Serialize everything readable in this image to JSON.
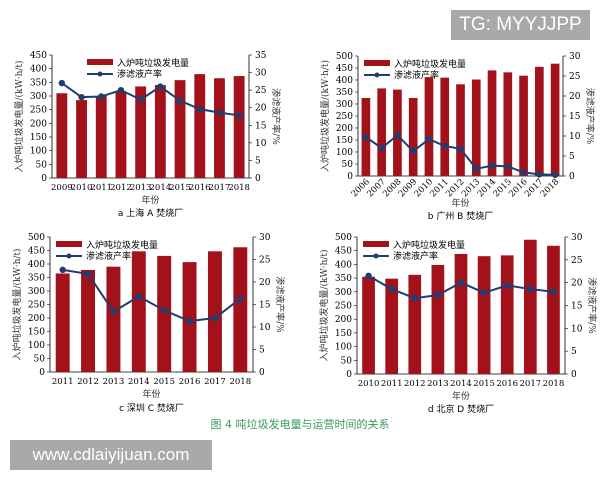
{
  "watermark_top": "TG: MYYJJPP",
  "watermark_bottom": "www.cdlaiyijuan.com",
  "figure_caption": "图 4    吨垃圾发电量与运营时间的关系",
  "colors": {
    "bar": "#a3121b",
    "line": "#1f3d70"
  },
  "chart_data": [
    {
      "type": "bar+line",
      "title": "a  上海 A 焚烧厂",
      "xlabel": "年份",
      "ylabel": "入炉吨垃圾发电量/(kW·h/t)",
      "y2label": "渗滤液产率/%",
      "legend": [
        "入炉吨垃圾发电量",
        "渗滤液产率"
      ],
      "legend_position": "top-center",
      "categories": [
        "2009",
        "2010",
        "2011",
        "2012",
        "2013",
        "2014",
        "2015",
        "2016",
        "2017",
        "2018"
      ],
      "series": [
        {
          "name": "入炉吨垃圾发电量",
          "axis": "left",
          "values": [
            310,
            285,
            300,
            315,
            335,
            340,
            358,
            380,
            365,
            373
          ]
        },
        {
          "name": "渗滤液产率",
          "axis": "right",
          "values": [
            27,
            23,
            23.2,
            25,
            22.3,
            26,
            22,
            19.6,
            18.6,
            17.8
          ]
        }
      ],
      "ylim": [
        0,
        450
      ],
      "yticks": [
        0,
        50,
        100,
        150,
        200,
        250,
        300,
        350,
        400,
        450
      ],
      "y2lim": [
        0,
        35
      ],
      "y2ticks": [
        0,
        5,
        10,
        15,
        20,
        25,
        30,
        35
      ],
      "rotate_x": false
    },
    {
      "type": "bar+line",
      "title": "b  广州 B 焚烧厂",
      "xlabel": "年份",
      "ylabel": "入炉吨垃圾发电量/(kW·h/t)",
      "y2label": "渗滤液产率/%",
      "legend": [
        "入炉吨垃圾发电量",
        "渗滤液产率"
      ],
      "legend_position": "top-left",
      "categories": [
        "2006",
        "2007",
        "2008",
        "2009",
        "2010",
        "2011",
        "2012",
        "2013",
        "2014",
        "2015",
        "2016",
        "2017",
        "2018"
      ],
      "series": [
        {
          "name": "入炉吨垃圾发电量",
          "axis": "left",
          "values": [
            325,
            365,
            360,
            325,
            412,
            410,
            382,
            402,
            440,
            432,
            418,
            455,
            468
          ]
        },
        {
          "name": "渗滤液产率",
          "axis": "right",
          "values": [
            9.7,
            7,
            10.2,
            6.2,
            9.2,
            7.5,
            6.8,
            1.8,
            2.6,
            2.4,
            0.9,
            0.4,
            0.3
          ]
        }
      ],
      "ylim": [
        0,
        500
      ],
      "yticks": [
        0,
        50,
        100,
        150,
        200,
        250,
        300,
        350,
        400,
        450,
        500
      ],
      "y2lim": [
        0,
        30
      ],
      "y2ticks": [
        0,
        5,
        10,
        15,
        20,
        25,
        30
      ],
      "rotate_x": true
    },
    {
      "type": "bar+line",
      "title": "c  深圳 C 焚烧厂",
      "xlabel": "年份",
      "ylabel": "入炉吨垃圾发电量/(kW·h/t)",
      "y2label": "渗滤液产率/%",
      "legend": [
        "入炉吨垃圾发电量",
        "渗滤液产率"
      ],
      "legend_position": "top-left",
      "categories": [
        "2011",
        "2012",
        "2013",
        "2014",
        "2015",
        "2016",
        "2017",
        "2018"
      ],
      "series": [
        {
          "name": "入炉吨垃圾发电量",
          "axis": "left",
          "values": [
            365,
            378,
            390,
            447,
            430,
            407,
            447,
            462
          ]
        },
        {
          "name": "渗滤液产率",
          "axis": "right",
          "values": [
            22.7,
            21.8,
            13.4,
            16.8,
            13.7,
            11.3,
            12,
            16.3
          ]
        }
      ],
      "ylim": [
        0,
        500
      ],
      "yticks": [
        0,
        50,
        100,
        150,
        200,
        250,
        300,
        350,
        400,
        450,
        500
      ],
      "y2lim": [
        0,
        30
      ],
      "y2ticks": [
        0,
        5,
        10,
        15,
        20,
        25,
        30
      ],
      "rotate_x": false
    },
    {
      "type": "bar+line",
      "title": "d  北京 D 焚烧厂",
      "xlabel": "年份",
      "ylabel": "入炉吨垃圾发电量/(kW·h/t)",
      "y2label": "渗滤液产率/%",
      "legend": [
        "入炉吨垃圾发电量",
        "渗滤液产率"
      ],
      "legend_position": "top-left",
      "categories": [
        "2010",
        "2011",
        "2012",
        "2013",
        "2014",
        "2015",
        "2016",
        "2017",
        "2018"
      ],
      "series": [
        {
          "name": "入炉吨垃圾发电量",
          "axis": "left",
          "values": [
            355,
            348,
            362,
            398,
            438,
            430,
            433,
            490,
            468
          ]
        },
        {
          "name": "渗滤液产率",
          "axis": "right",
          "values": [
            21.5,
            18.6,
            16.6,
            17.3,
            20,
            17.8,
            19.4,
            18.6,
            18
          ]
        }
      ],
      "ylim": [
        0,
        500
      ],
      "yticks": [
        0,
        50,
        100,
        150,
        200,
        250,
        300,
        350,
        400,
        450,
        500
      ],
      "y2lim": [
        0,
        30
      ],
      "y2ticks": [
        0,
        5,
        10,
        15,
        20,
        25,
        30
      ],
      "rotate_x": false
    }
  ]
}
